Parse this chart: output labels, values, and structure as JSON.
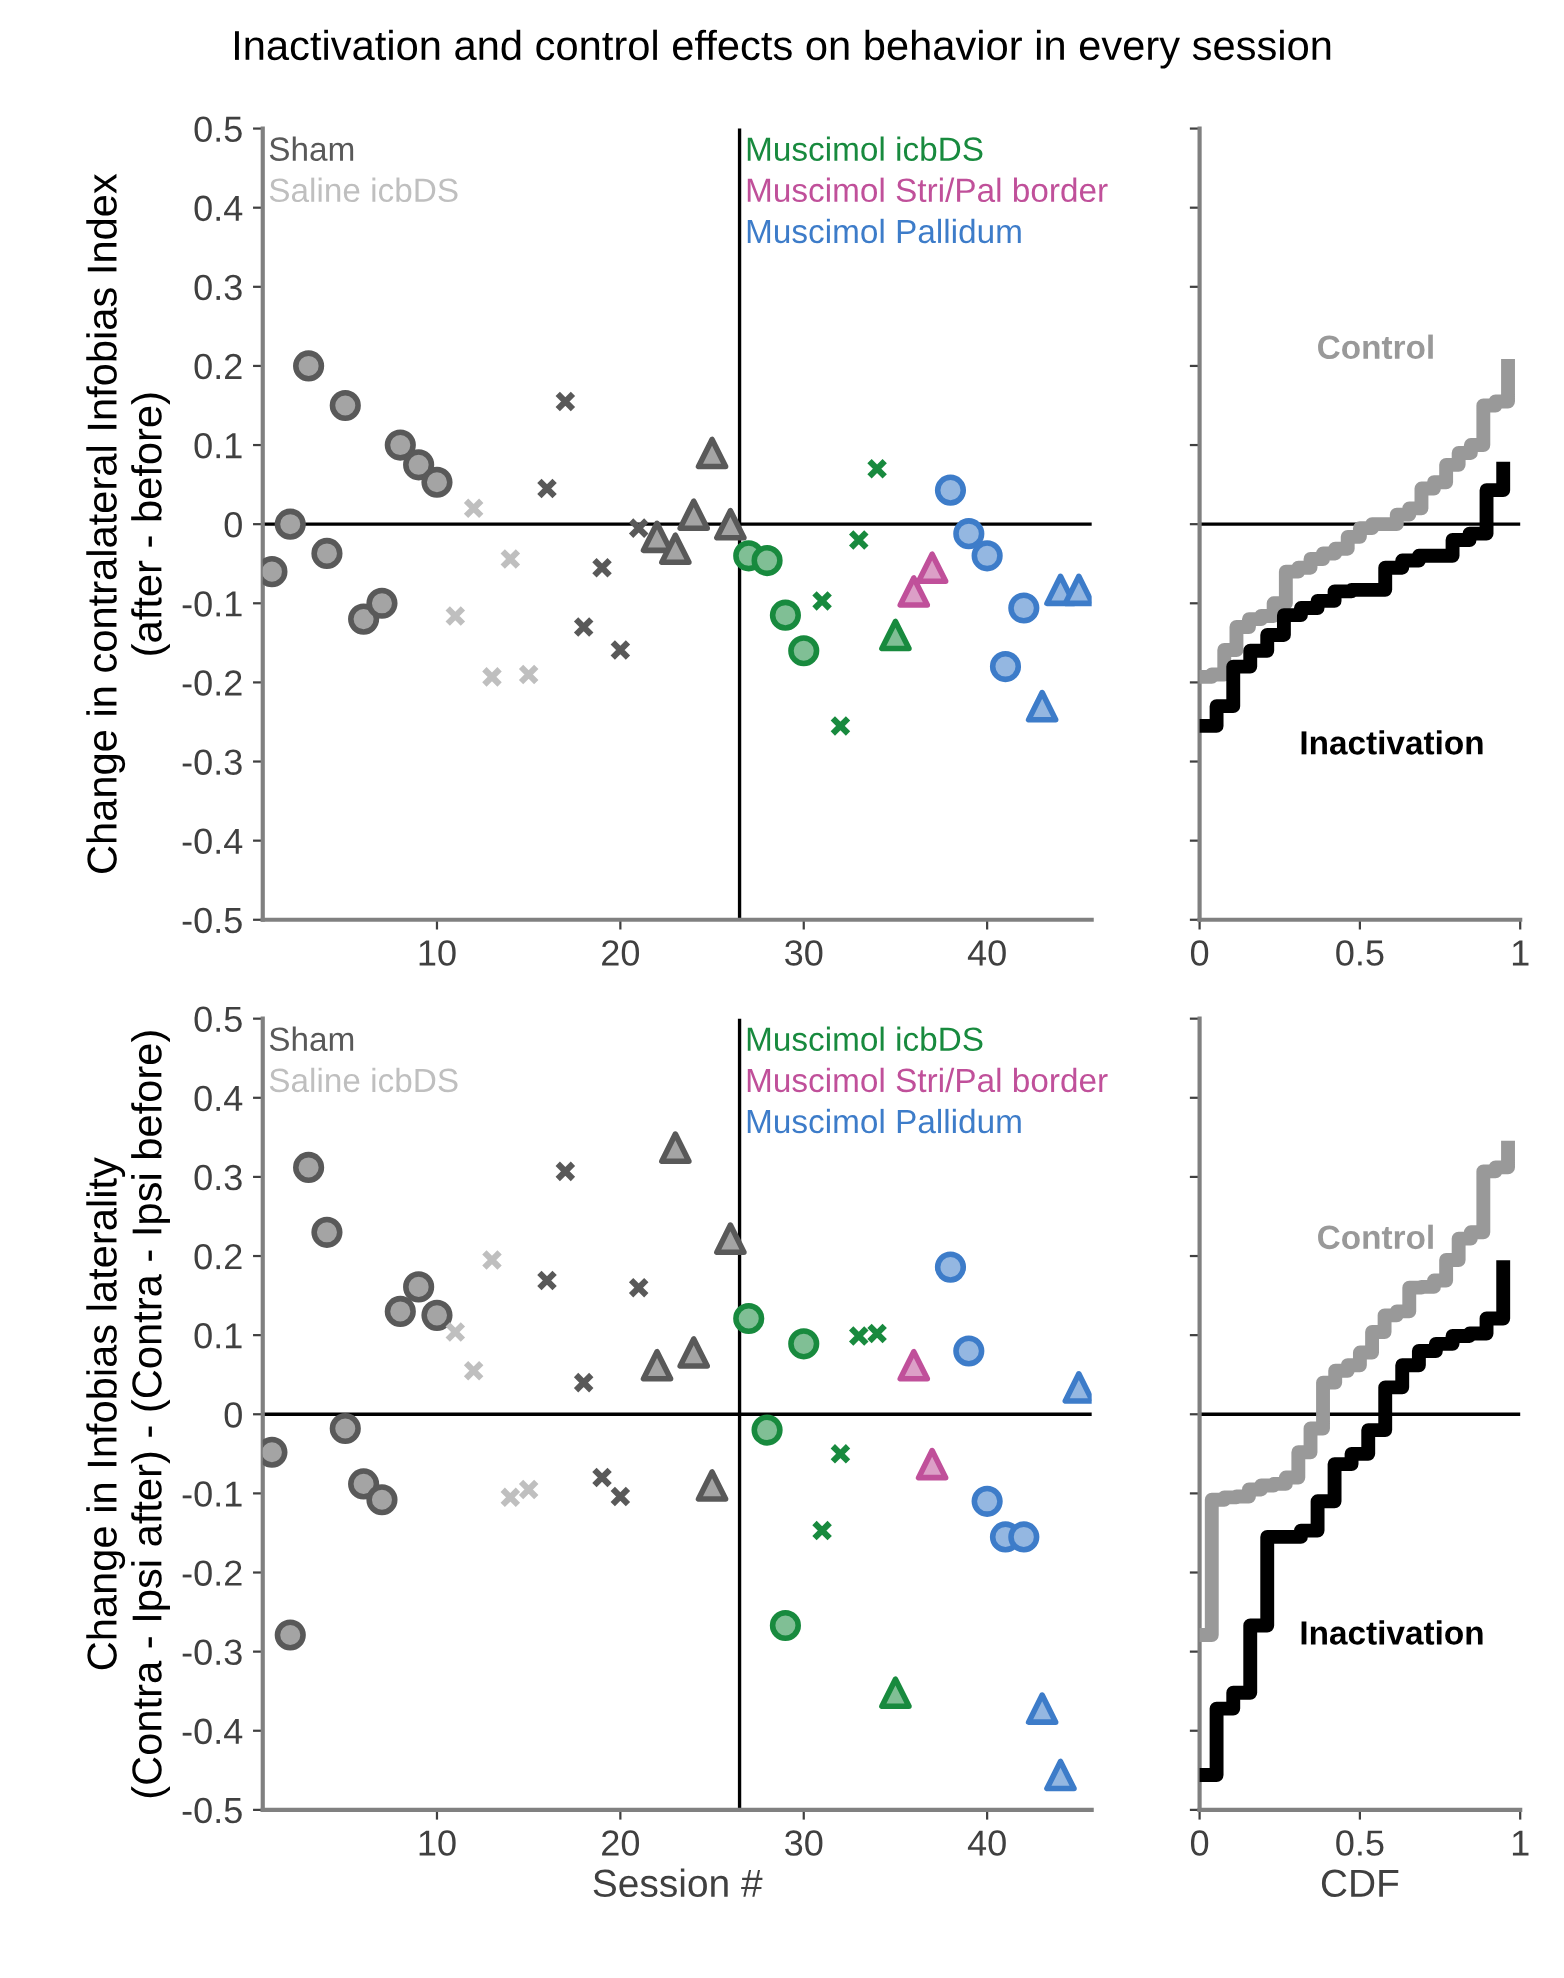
{
  "chart_data": [
    {
      "type": "scatter",
      "title": "Inactivation and control effects on behavior in every session",
      "ylabel": "Change in contralateral Infobias Index\n(after - before)",
      "xlim": [
        0.5,
        45.7
      ],
      "xticks": [
        10,
        20,
        30,
        40
      ],
      "ylim": [
        -0.5,
        0.5
      ],
      "yticks": [
        -0.5,
        -0.4,
        -0.3,
        -0.2,
        -0.1,
        0,
        0.1,
        0.2,
        0.3,
        0.4,
        0.5
      ],
      "grid": false,
      "legend": "top left",
      "ref_lines": [
        {
          "axis": "y",
          "value": 0,
          "color": "#000000"
        },
        {
          "axis": "x",
          "value": 26.5,
          "color": "#000000"
        }
      ],
      "series": [
        {
          "name": "Sham",
          "color": "#595959",
          "marker": "circle",
          "x": [
            1,
            2,
            3,
            4,
            5,
            6,
            7,
            8,
            9,
            10
          ],
          "values": [
            -0.06,
            0,
            0.2,
            -0.037,
            0.15,
            -0.12,
            -0.1,
            0.1,
            0.075,
            0.053
          ]
        },
        {
          "name": "Saline icbDS",
          "color": "#bfbfbf",
          "marker": "cross",
          "x": [
            11,
            12,
            13,
            14,
            15
          ],
          "values": [
            -0.116,
            0.02,
            -0.193,
            -0.044,
            -0.19
          ]
        },
        {
          "color": "#595959",
          "marker": "cross",
          "x": [
            16,
            17,
            18,
            19,
            20,
            21
          ],
          "values": [
            0.045,
            0.155,
            -0.13,
            -0.055,
            -0.159,
            -0.005
          ]
        },
        {
          "color": "#595959",
          "marker": "triangle",
          "x": [
            22,
            23,
            24,
            25,
            26
          ],
          "values": [
            -0.016,
            -0.031,
            0.012,
            0.09,
            0
          ]
        },
        {
          "name": "Muscimol icbDS",
          "color": "#188a3e",
          "marker": "circle",
          "x": [
            27,
            28,
            29,
            30
          ],
          "values": [
            -0.04,
            -0.046,
            -0.115,
            -0.16
          ]
        },
        {
          "color": "#188a3e",
          "marker": "cross",
          "x": [
            31,
            32,
            33,
            34
          ],
          "values": [
            -0.097,
            -0.255,
            -0.02,
            0.07
          ]
        },
        {
          "color": "#188a3e",
          "marker": "triangle",
          "x": [
            35
          ],
          "values": [
            -0.14
          ]
        },
        {
          "name": "Muscimol Stri/Pal border",
          "color": "#c0509a",
          "marker": "triangle",
          "x": [
            36,
            37
          ],
          "values": [
            -0.085,
            -0.055
          ]
        },
        {
          "name": "Muscimol Pallidum",
          "color": "#3d7cc9",
          "marker": "circle",
          "x": [
            38,
            39,
            40,
            41,
            42
          ],
          "values": [
            0.043,
            -0.012,
            -0.04,
            -0.18,
            -0.106
          ]
        },
        {
          "color": "#3d7cc9",
          "marker": "triangle",
          "x": [
            43,
            44,
            45
          ],
          "values": [
            -0.23,
            -0.083,
            -0.083
          ]
        }
      ]
    },
    {
      "type": "step",
      "xlim": [
        0,
        1
      ],
      "xticks": [
        0,
        0.5,
        1
      ],
      "ylim": [
        -0.5,
        0.5
      ],
      "yticks": [
        -0.5,
        -0.4,
        -0.3,
        -0.2,
        -0.1,
        0,
        0.1,
        0.2,
        0.3,
        0.4,
        0.5
      ],
      "tick_labels": "x",
      "grid": false,
      "ref_lines": [
        {
          "axis": "y",
          "value": 0,
          "color": "#000000"
        }
      ],
      "series": [
        {
          "name": "Control",
          "color": "#999999",
          "x": [
            0,
            0.038,
            0.077,
            0.115,
            0.154,
            0.192,
            0.231,
            0.269,
            0.308,
            0.346,
            0.385,
            0.423,
            0.462,
            0.5,
            0.538,
            0.577,
            0.615,
            0.654,
            0.692,
            0.731,
            0.769,
            0.808,
            0.846,
            0.885,
            0.923,
            0.962
          ],
          "values": [
            -0.193,
            -0.19,
            -0.159,
            -0.13,
            -0.12,
            -0.116,
            -0.1,
            -0.06,
            -0.055,
            -0.044,
            -0.037,
            -0.031,
            -0.016,
            -0.005,
            0,
            0,
            0.012,
            0.02,
            0.045,
            0.053,
            0.075,
            0.09,
            0.1,
            0.15,
            0.155,
            0.2
          ]
        },
        {
          "name": "Inactivation",
          "color": "#000000",
          "x": [
            0,
            0.053,
            0.105,
            0.158,
            0.211,
            0.263,
            0.316,
            0.368,
            0.421,
            0.474,
            0.526,
            0.579,
            0.632,
            0.684,
            0.737,
            0.789,
            0.842,
            0.895,
            0.947
          ],
          "values": [
            -0.255,
            -0.23,
            -0.18,
            -0.16,
            -0.14,
            -0.115,
            -0.106,
            -0.097,
            -0.085,
            -0.083,
            -0.083,
            -0.055,
            -0.046,
            -0.04,
            -0.04,
            -0.02,
            -0.012,
            0.043,
            0.07
          ]
        }
      ]
    },
    {
      "type": "scatter",
      "xlabel": "Session #",
      "ylabel": "Change in Infobias laterality\n(Contra - Ipsi after) - (Contra - Ipsi before)",
      "xlim": [
        0.5,
        45.7
      ],
      "xticks": [
        10,
        20,
        30,
        40
      ],
      "ylim": [
        -0.5,
        0.5
      ],
      "yticks": [
        -0.5,
        -0.4,
        -0.3,
        -0.2,
        -0.1,
        0,
        0.1,
        0.2,
        0.3,
        0.4,
        0.5
      ],
      "grid": false,
      "legend": "top left",
      "ref_lines": [
        {
          "axis": "y",
          "value": 0,
          "color": "#000000"
        },
        {
          "axis": "x",
          "value": 26.5,
          "color": "#000000"
        }
      ],
      "series": [
        {
          "name": "Sham",
          "color": "#595959",
          "marker": "circle",
          "x": [
            1,
            2,
            3,
            4,
            5,
            6,
            7,
            8,
            9,
            10
          ],
          "values": [
            -0.048,
            -0.279,
            0.312,
            0.23,
            -0.018,
            -0.088,
            -0.108,
            0.13,
            0.161,
            0.125
          ]
        },
        {
          "name": "Saline icbDS",
          "color": "#bfbfbf",
          "marker": "cross",
          "x": [
            11,
            12,
            13,
            14,
            15
          ],
          "values": [
            0.104,
            0.055,
            0.195,
            -0.105,
            -0.095
          ]
        },
        {
          "color": "#595959",
          "marker": "cross",
          "x": [
            16,
            17,
            18,
            19,
            20,
            21
          ],
          "values": [
            0.169,
            0.307,
            0.04,
            -0.08,
            -0.104,
            0.16
          ]
        },
        {
          "color": "#595959",
          "marker": "triangle",
          "x": [
            22,
            23,
            24,
            25,
            26
          ],
          "values": [
            0.062,
            0.337,
            0.078,
            -0.09,
            0.222
          ]
        },
        {
          "name": "Muscimol icbDS",
          "color": "#188a3e",
          "marker": "circle",
          "x": [
            27,
            28,
            29,
            30
          ],
          "values": [
            0.121,
            -0.02,
            -0.267,
            0.089
          ]
        },
        {
          "color": "#188a3e",
          "marker": "cross",
          "x": [
            31,
            32,
            33,
            34
          ],
          "values": [
            -0.147,
            -0.05,
            0.099,
            0.102
          ]
        },
        {
          "color": "#188a3e",
          "marker": "triangle",
          "x": [
            35
          ],
          "values": [
            -0.352
          ]
        },
        {
          "name": "Muscimol Stri/Pal border",
          "color": "#c0509a",
          "marker": "triangle",
          "x": [
            36,
            37
          ],
          "values": [
            0.062,
            -0.063
          ]
        },
        {
          "name": "Muscimol Pallidum",
          "color": "#3d7cc9",
          "marker": "circle",
          "x": [
            38,
            39,
            40,
            41,
            42
          ],
          "values": [
            0.186,
            0.08,
            -0.11,
            -0.155,
            -0.155
          ]
        },
        {
          "color": "#3d7cc9",
          "marker": "triangle",
          "x": [
            43,
            44,
            45
          ],
          "values": [
            -0.372,
            -0.456,
            0.034
          ]
        }
      ]
    },
    {
      "type": "step",
      "xlabel": "CDF",
      "xlim": [
        0,
        1
      ],
      "xticks": [
        0,
        0.5,
        1
      ],
      "ylim": [
        -0.5,
        0.5
      ],
      "yticks": [
        -0.5,
        -0.4,
        -0.3,
        -0.2,
        -0.1,
        0,
        0.1,
        0.2,
        0.3,
        0.4,
        0.5
      ],
      "tick_labels": "x",
      "grid": false,
      "ref_lines": [
        {
          "axis": "y",
          "value": 0,
          "color": "#000000"
        }
      ],
      "series": [
        {
          "name": "Control",
          "color": "#999999",
          "x": [
            0,
            0.038,
            0.077,
            0.115,
            0.154,
            0.192,
            0.231,
            0.269,
            0.308,
            0.346,
            0.385,
            0.423,
            0.462,
            0.5,
            0.538,
            0.577,
            0.615,
            0.654,
            0.692,
            0.731,
            0.769,
            0.808,
            0.846,
            0.885,
            0.923,
            0.962
          ],
          "values": [
            -0.279,
            -0.108,
            -0.105,
            -0.104,
            -0.095,
            -0.09,
            -0.088,
            -0.08,
            -0.048,
            -0.018,
            0.04,
            0.055,
            0.062,
            0.078,
            0.104,
            0.125,
            0.13,
            0.16,
            0.161,
            0.169,
            0.195,
            0.222,
            0.23,
            0.307,
            0.312,
            0.337
          ]
        },
        {
          "name": "Inactivation",
          "color": "#000000",
          "x": [
            0,
            0.053,
            0.105,
            0.158,
            0.211,
            0.263,
            0.316,
            0.368,
            0.421,
            0.474,
            0.526,
            0.579,
            0.632,
            0.684,
            0.737,
            0.789,
            0.842,
            0.895,
            0.947
          ],
          "values": [
            -0.456,
            -0.372,
            -0.352,
            -0.267,
            -0.155,
            -0.155,
            -0.147,
            -0.11,
            -0.063,
            -0.05,
            -0.02,
            0.034,
            0.062,
            0.08,
            0.089,
            0.099,
            0.102,
            0.121,
            0.186
          ]
        }
      ]
    }
  ]
}
